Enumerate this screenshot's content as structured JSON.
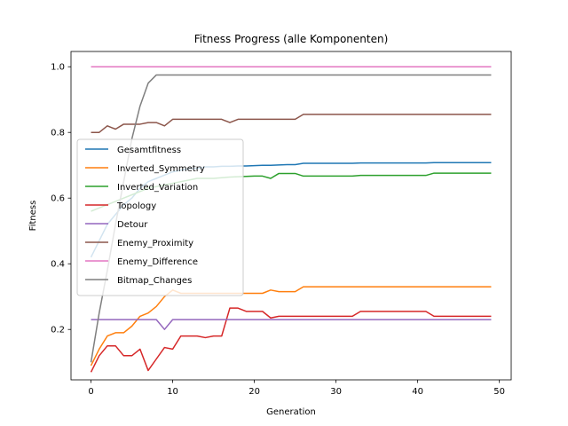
{
  "chart_data": {
    "type": "line",
    "title": "Fitness Progress (alle Komponenten)",
    "xlabel": "Generation",
    "ylabel": "Fitness",
    "xlim": [
      -2.45,
      51.45
    ],
    "ylim": [
      0.0465,
      1.0465
    ],
    "xticks": [
      0,
      10,
      20,
      30,
      40,
      50
    ],
    "yticks": [
      0.2,
      0.4,
      0.6,
      0.8,
      1.0
    ],
    "xtick_labels": [
      "0",
      "10",
      "20",
      "30",
      "40",
      "50"
    ],
    "ytick_labels": [
      "0.2",
      "0.4",
      "0.6",
      "0.8",
      "1.0"
    ],
    "grid": false,
    "legend_position": "center-left",
    "x": [
      0,
      1,
      2,
      3,
      4,
      5,
      6,
      7,
      8,
      9,
      10,
      11,
      12,
      13,
      14,
      15,
      16,
      17,
      18,
      19,
      20,
      21,
      22,
      23,
      24,
      25,
      26,
      27,
      28,
      29,
      30,
      31,
      32,
      33,
      34,
      35,
      36,
      37,
      38,
      39,
      40,
      41,
      42,
      43,
      44,
      45,
      46,
      47,
      48,
      49
    ],
    "series": [
      {
        "name": "Gesamtfitness",
        "color": "#1f77b4",
        "values": [
          0.42,
          0.47,
          0.52,
          0.55,
          0.58,
          0.6,
          0.63,
          0.65,
          0.66,
          0.67,
          0.68,
          0.685,
          0.69,
          0.69,
          0.695,
          0.695,
          0.697,
          0.697,
          0.698,
          0.698,
          0.699,
          0.7,
          0.7,
          0.701,
          0.702,
          0.702,
          0.706,
          0.706,
          0.706,
          0.706,
          0.706,
          0.706,
          0.706,
          0.707,
          0.707,
          0.707,
          0.707,
          0.707,
          0.707,
          0.707,
          0.707,
          0.707,
          0.708,
          0.708,
          0.708,
          0.708,
          0.708,
          0.708,
          0.708,
          0.708
        ]
      },
      {
        "name": "Inverted_Symmetry",
        "color": "#ff7f0e",
        "values": [
          0.09,
          0.14,
          0.18,
          0.19,
          0.19,
          0.21,
          0.24,
          0.25,
          0.27,
          0.3,
          0.32,
          0.31,
          0.31,
          0.31,
          0.31,
          0.31,
          0.31,
          0.31,
          0.31,
          0.31,
          0.31,
          0.31,
          0.32,
          0.315,
          0.315,
          0.315,
          0.33,
          0.33,
          0.33,
          0.33,
          0.33,
          0.33,
          0.33,
          0.33,
          0.33,
          0.33,
          0.33,
          0.33,
          0.33,
          0.33,
          0.33,
          0.33,
          0.33,
          0.33,
          0.33,
          0.33,
          0.33,
          0.33,
          0.33,
          0.33
        ]
      },
      {
        "name": "Inverted_Variation",
        "color": "#2ca02c",
        "values": [
          0.56,
          0.57,
          0.58,
          0.59,
          0.6,
          0.61,
          0.62,
          0.63,
          0.635,
          0.64,
          0.645,
          0.65,
          0.655,
          0.66,
          0.66,
          0.66,
          0.662,
          0.664,
          0.665,
          0.666,
          0.667,
          0.667,
          0.66,
          0.675,
          0.675,
          0.675,
          0.667,
          0.667,
          0.667,
          0.667,
          0.667,
          0.667,
          0.667,
          0.669,
          0.669,
          0.669,
          0.669,
          0.669,
          0.669,
          0.669,
          0.669,
          0.669,
          0.676,
          0.676,
          0.676,
          0.676,
          0.676,
          0.676,
          0.676,
          0.676
        ]
      },
      {
        "name": "Topology",
        "color": "#d62728",
        "values": [
          0.07,
          0.12,
          0.15,
          0.15,
          0.12,
          0.12,
          0.14,
          0.075,
          0.11,
          0.145,
          0.14,
          0.18,
          0.18,
          0.18,
          0.175,
          0.18,
          0.18,
          0.265,
          0.265,
          0.255,
          0.255,
          0.255,
          0.235,
          0.24,
          0.24,
          0.24,
          0.24,
          0.24,
          0.24,
          0.24,
          0.24,
          0.24,
          0.24,
          0.255,
          0.255,
          0.255,
          0.255,
          0.255,
          0.255,
          0.255,
          0.255,
          0.255,
          0.24,
          0.24,
          0.24,
          0.24,
          0.24,
          0.24,
          0.24,
          0.24
        ]
      },
      {
        "name": "Detour",
        "color": "#9467bd",
        "values": [
          0.23,
          0.23,
          0.23,
          0.23,
          0.23,
          0.23,
          0.23,
          0.23,
          0.23,
          0.2,
          0.23,
          0.23,
          0.23,
          0.23,
          0.23,
          0.23,
          0.23,
          0.23,
          0.23,
          0.23,
          0.23,
          0.23,
          0.23,
          0.23,
          0.23,
          0.23,
          0.23,
          0.23,
          0.23,
          0.23,
          0.23,
          0.23,
          0.23,
          0.23,
          0.23,
          0.23,
          0.23,
          0.23,
          0.23,
          0.23,
          0.23,
          0.23,
          0.23,
          0.23,
          0.23,
          0.23,
          0.23,
          0.23,
          0.23,
          0.23
        ]
      },
      {
        "name": "Enemy_Proximity",
        "color": "#8c564b",
        "values": [
          0.8,
          0.8,
          0.82,
          0.81,
          0.825,
          0.825,
          0.825,
          0.83,
          0.83,
          0.82,
          0.84,
          0.84,
          0.84,
          0.84,
          0.84,
          0.84,
          0.84,
          0.83,
          0.84,
          0.84,
          0.84,
          0.84,
          0.84,
          0.84,
          0.84,
          0.84,
          0.855,
          0.855,
          0.855,
          0.855,
          0.855,
          0.855,
          0.855,
          0.855,
          0.855,
          0.855,
          0.855,
          0.855,
          0.855,
          0.855,
          0.855,
          0.855,
          0.855,
          0.855,
          0.855,
          0.855,
          0.855,
          0.855,
          0.855,
          0.855
        ]
      },
      {
        "name": "Enemy_Difference",
        "color": "#e377c2",
        "values": [
          1.0,
          1.0,
          1.0,
          1.0,
          1.0,
          1.0,
          1.0,
          1.0,
          1.0,
          1.0,
          1.0,
          1.0,
          1.0,
          1.0,
          1.0,
          1.0,
          1.0,
          1.0,
          1.0,
          1.0,
          1.0,
          1.0,
          1.0,
          1.0,
          1.0,
          1.0,
          1.0,
          1.0,
          1.0,
          1.0,
          1.0,
          1.0,
          1.0,
          1.0,
          1.0,
          1.0,
          1.0,
          1.0,
          1.0,
          1.0,
          1.0,
          1.0,
          1.0,
          1.0,
          1.0,
          1.0,
          1.0,
          1.0,
          1.0,
          1.0
        ]
      },
      {
        "name": "Bitmap_Changes",
        "color": "#7f7f7f",
        "values": [
          0.1,
          0.25,
          0.38,
          0.52,
          0.65,
          0.78,
          0.88,
          0.95,
          0.975,
          0.975,
          0.975,
          0.975,
          0.975,
          0.975,
          0.975,
          0.975,
          0.975,
          0.975,
          0.975,
          0.975,
          0.975,
          0.975,
          0.975,
          0.975,
          0.975,
          0.975,
          0.975,
          0.975,
          0.975,
          0.975,
          0.975,
          0.975,
          0.975,
          0.975,
          0.975,
          0.975,
          0.975,
          0.975,
          0.975,
          0.975,
          0.975,
          0.975,
          0.975,
          0.975,
          0.975,
          0.975,
          0.975,
          0.975,
          0.975,
          0.975
        ]
      }
    ]
  }
}
